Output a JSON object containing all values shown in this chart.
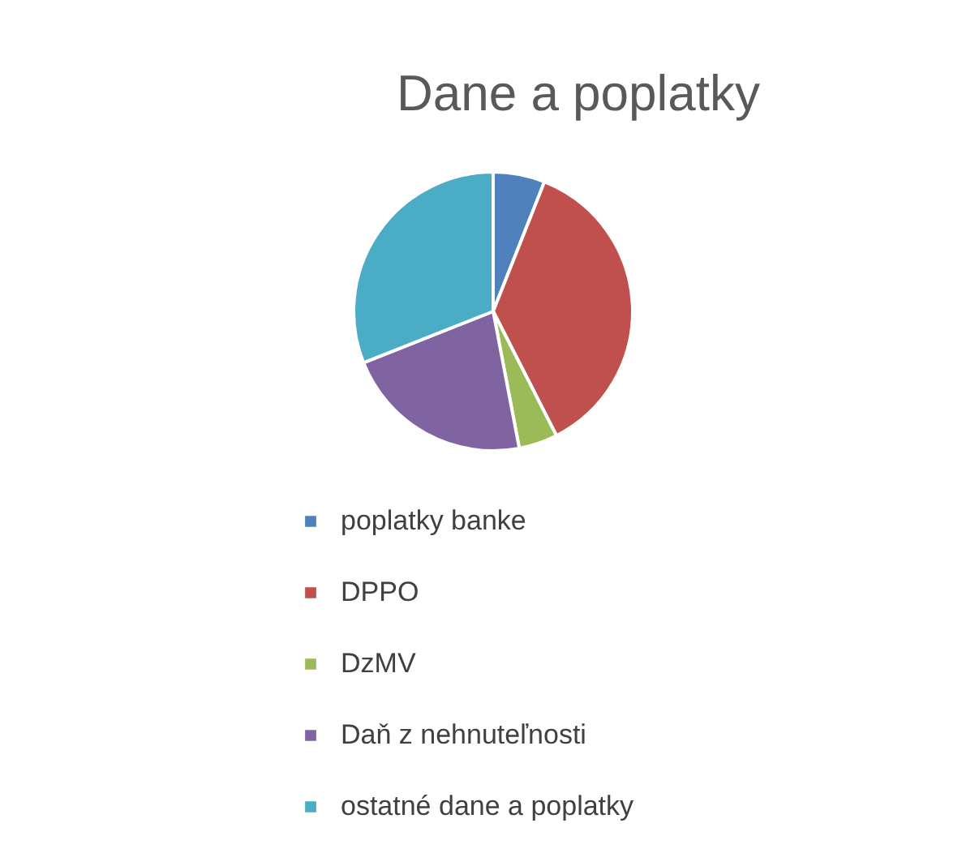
{
  "chart_data": {
    "type": "pie",
    "title": "Dane a poplatky",
    "categories": [
      "poplatky banke",
      "DPPO",
      "DzMV",
      "Daň z nehnuteľnosti",
      "ostatné dane a poplatky"
    ],
    "values": [
      6,
      36.5,
      4.5,
      22,
      31
    ],
    "colors": [
      "#4f81bd",
      "#c0504d",
      "#9bbb59",
      "#8064a2",
      "#4bacc6"
    ],
    "legend": "bottom"
  }
}
